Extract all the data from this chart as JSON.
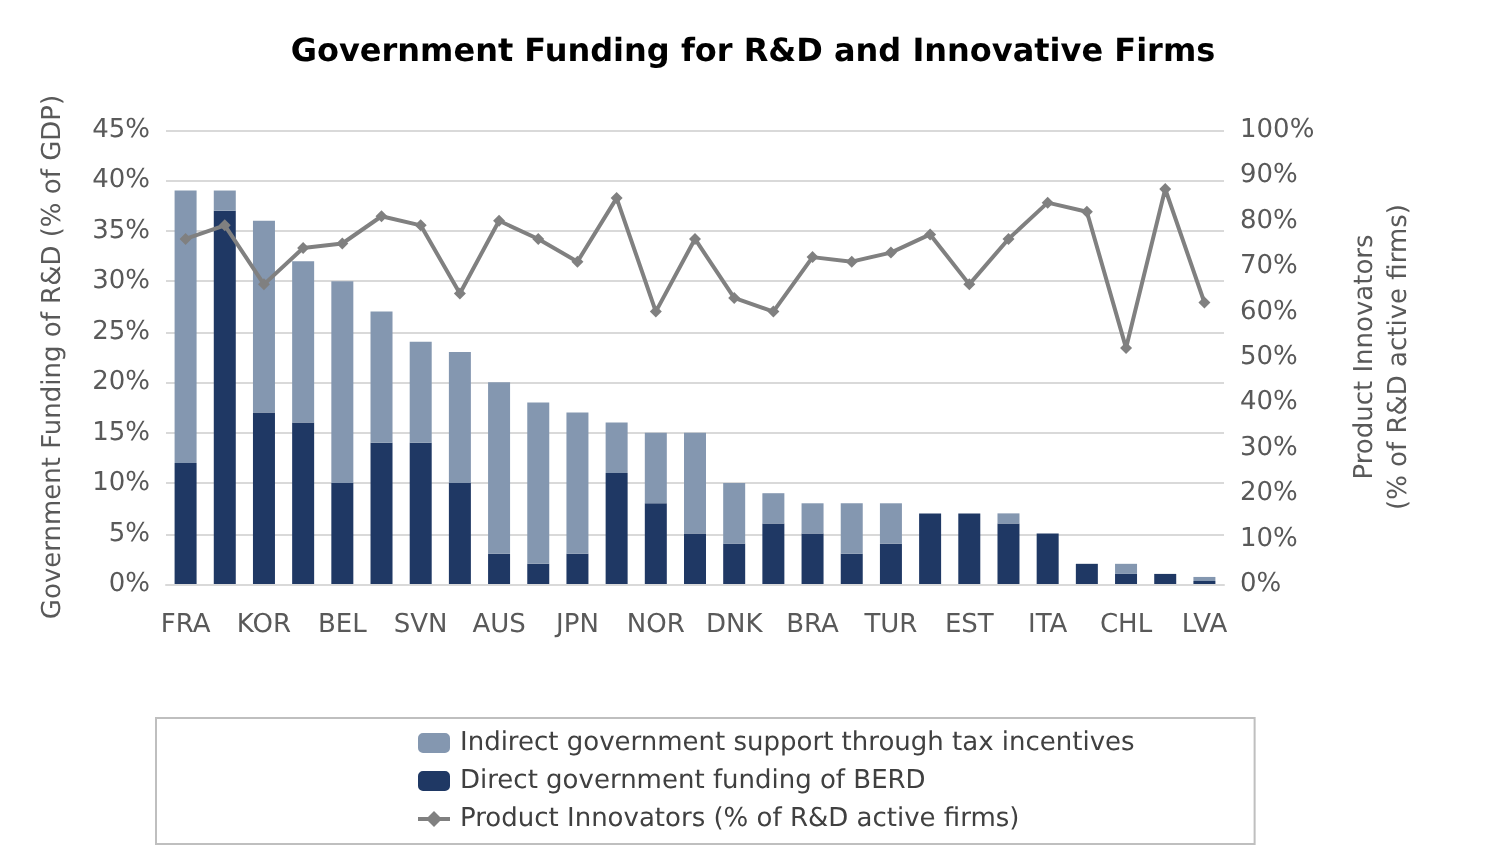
{
  "chart_data": {
    "type": "bar",
    "title": "Government Funding for R&D and Innovative Firms",
    "ylabel": "Government Funding of R&D (% of GDP)",
    "y2label": "Product Innovators\n(% of R&D active firms)",
    "categories": [
      "FRA",
      null,
      "KOR",
      null,
      "BEL",
      null,
      "SVN",
      null,
      "AUS",
      null,
      "JPN",
      null,
      "NOR",
      null,
      "DNK",
      null,
      "BRA",
      null,
      "TUR",
      null,
      "EST",
      null,
      "ITA",
      null,
      "CHL",
      null,
      "LVA"
    ],
    "stacked": true,
    "series": [
      {
        "name": "Direct government funding of BERD",
        "color": "#1f3864",
        "values": [
          12,
          37,
          17,
          16,
          10,
          14,
          14,
          10,
          3,
          2,
          3,
          11,
          8,
          5,
          4,
          6,
          5,
          3,
          4,
          7,
          7,
          6,
          5,
          2,
          1,
          1,
          0.3
        ]
      },
      {
        "name": "Indirect government support through tax incentives",
        "color": "#8497b0",
        "values": [
          27,
          2,
          19,
          16,
          20,
          13,
          10,
          13,
          17,
          16,
          14,
          5,
          7,
          10,
          6,
          3,
          3,
          5,
          4,
          0,
          0,
          1,
          0,
          0,
          1,
          0,
          0.4
        ]
      },
      {
        "name": "Product Innovators (% of R&D active firms)",
        "type": "line",
        "axis": "y2",
        "color": "#808080",
        "marker": "diamond",
        "values": [
          76,
          79,
          66,
          74,
          75,
          81,
          79,
          64,
          80,
          76,
          71,
          85,
          60,
          76,
          63,
          60,
          72,
          71,
          73,
          77,
          66,
          76,
          84,
          82,
          52,
          87,
          62
        ]
      }
    ],
    "ylim": [
      0,
      45
    ],
    "yticks": [
      {
        "value": 0,
        "label": "0%"
      },
      {
        "value": 5,
        "label": "5%"
      },
      {
        "value": 10,
        "label": "10%"
      },
      {
        "value": 15,
        "label": "15%"
      },
      {
        "value": 20,
        "label": "20%"
      },
      {
        "value": 25,
        "label": "25%"
      },
      {
        "value": 30,
        "label": "30%"
      },
      {
        "value": 35,
        "label": "35%"
      },
      {
        "value": 40,
        "label": "40%"
      },
      {
        "value": 45,
        "label": "45%"
      }
    ],
    "y2lim": [
      0,
      100
    ],
    "y2ticks": [
      {
        "value": 0,
        "label": "0%"
      },
      {
        "value": 10,
        "label": "10%"
      },
      {
        "value": 20,
        "label": "20%"
      },
      {
        "value": 30,
        "label": "30%"
      },
      {
        "value": 40,
        "label": "40%"
      },
      {
        "value": 50,
        "label": "50%"
      },
      {
        "value": 60,
        "label": "60%"
      },
      {
        "value": 70,
        "label": "70%"
      },
      {
        "value": 80,
        "label": "80%"
      },
      {
        "value": 90,
        "label": "90%"
      },
      {
        "value": 100,
        "label": "100%"
      }
    ],
    "grid": "y",
    "legend": "bottom"
  }
}
